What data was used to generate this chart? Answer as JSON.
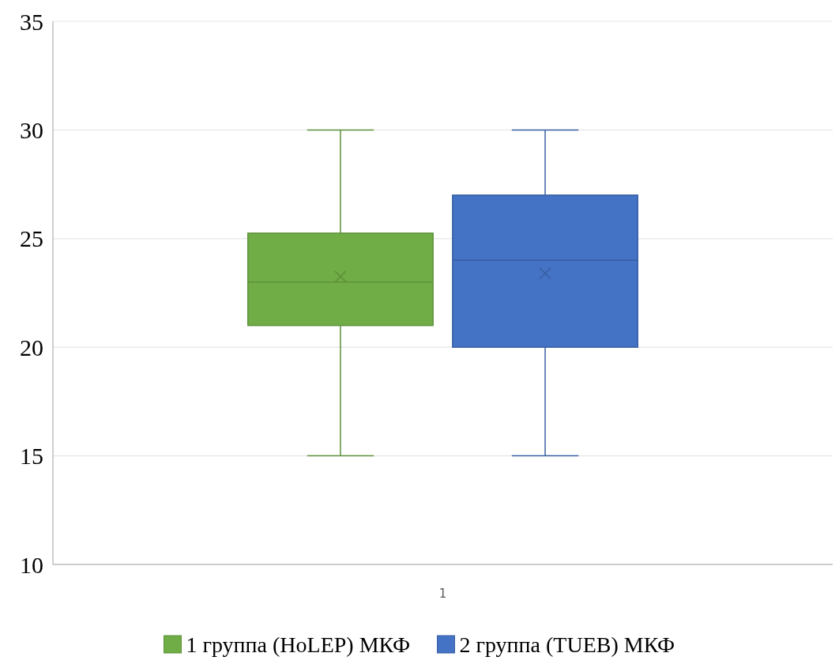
{
  "chart_data": {
    "type": "box",
    "categories": [
      "1"
    ],
    "ylim": [
      10,
      35
    ],
    "yticks": [
      10,
      15,
      20,
      25,
      30,
      35
    ],
    "grid": "y",
    "legend": "bottom",
    "series": [
      {
        "name": "1 группа (HoLEP) МКФ",
        "color": "#70ad47",
        "boxes": [
          {
            "low": 15,
            "q1": 21,
            "median": 23,
            "q3": 25.25,
            "high": 30,
            "mean": 23.25
          }
        ]
      },
      {
        "name": "2 группа (TUEB) МКФ",
        "color": "#4472c4",
        "boxes": [
          {
            "low": 15,
            "q1": 20,
            "median": 24,
            "q3": 27,
            "high": 30,
            "mean": 23.4
          }
        ]
      }
    ]
  }
}
